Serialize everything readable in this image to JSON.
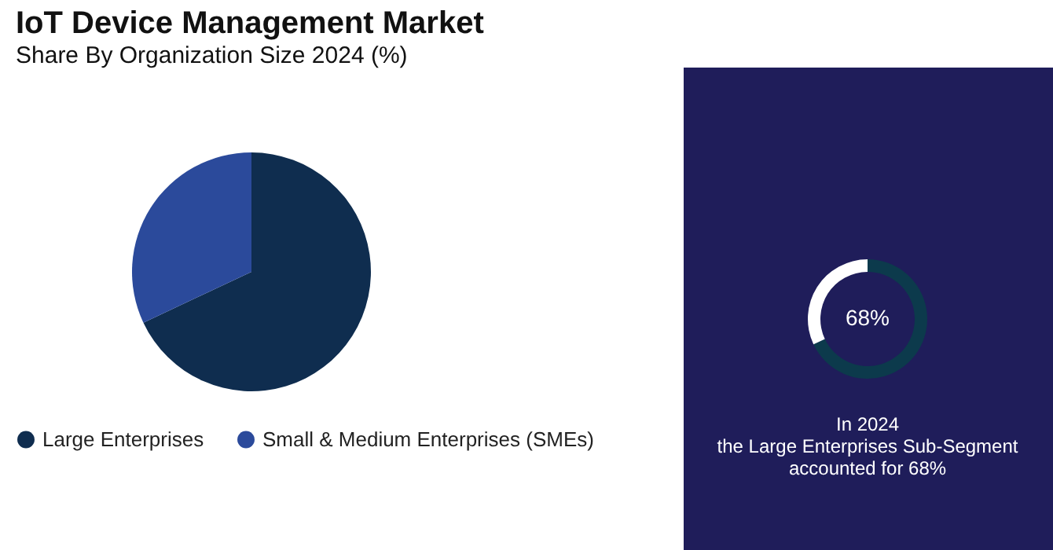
{
  "chart_data": [
    {
      "type": "pie",
      "title": "IoT Device Management Market",
      "subtitle": "Share By Organization Size 2024 (%)",
      "categories": [
        "Large Enterprises",
        "Small & Medium Enterprises (SMEs)"
      ],
      "values": [
        68,
        32
      ],
      "colors": [
        "#0f2d4f",
        "#2b4a9b"
      ],
      "legend": "bottom"
    },
    {
      "type": "donut",
      "categories": [
        null,
        null
      ],
      "values": [
        68,
        32
      ],
      "colors": [
        "#0c3a4c",
        "#ffffff"
      ],
      "annotations": [
        "68%",
        "In 2024\nthe Large Enterprises Sub-Segment\naccounted for 68%"
      ]
    }
  ]
}
